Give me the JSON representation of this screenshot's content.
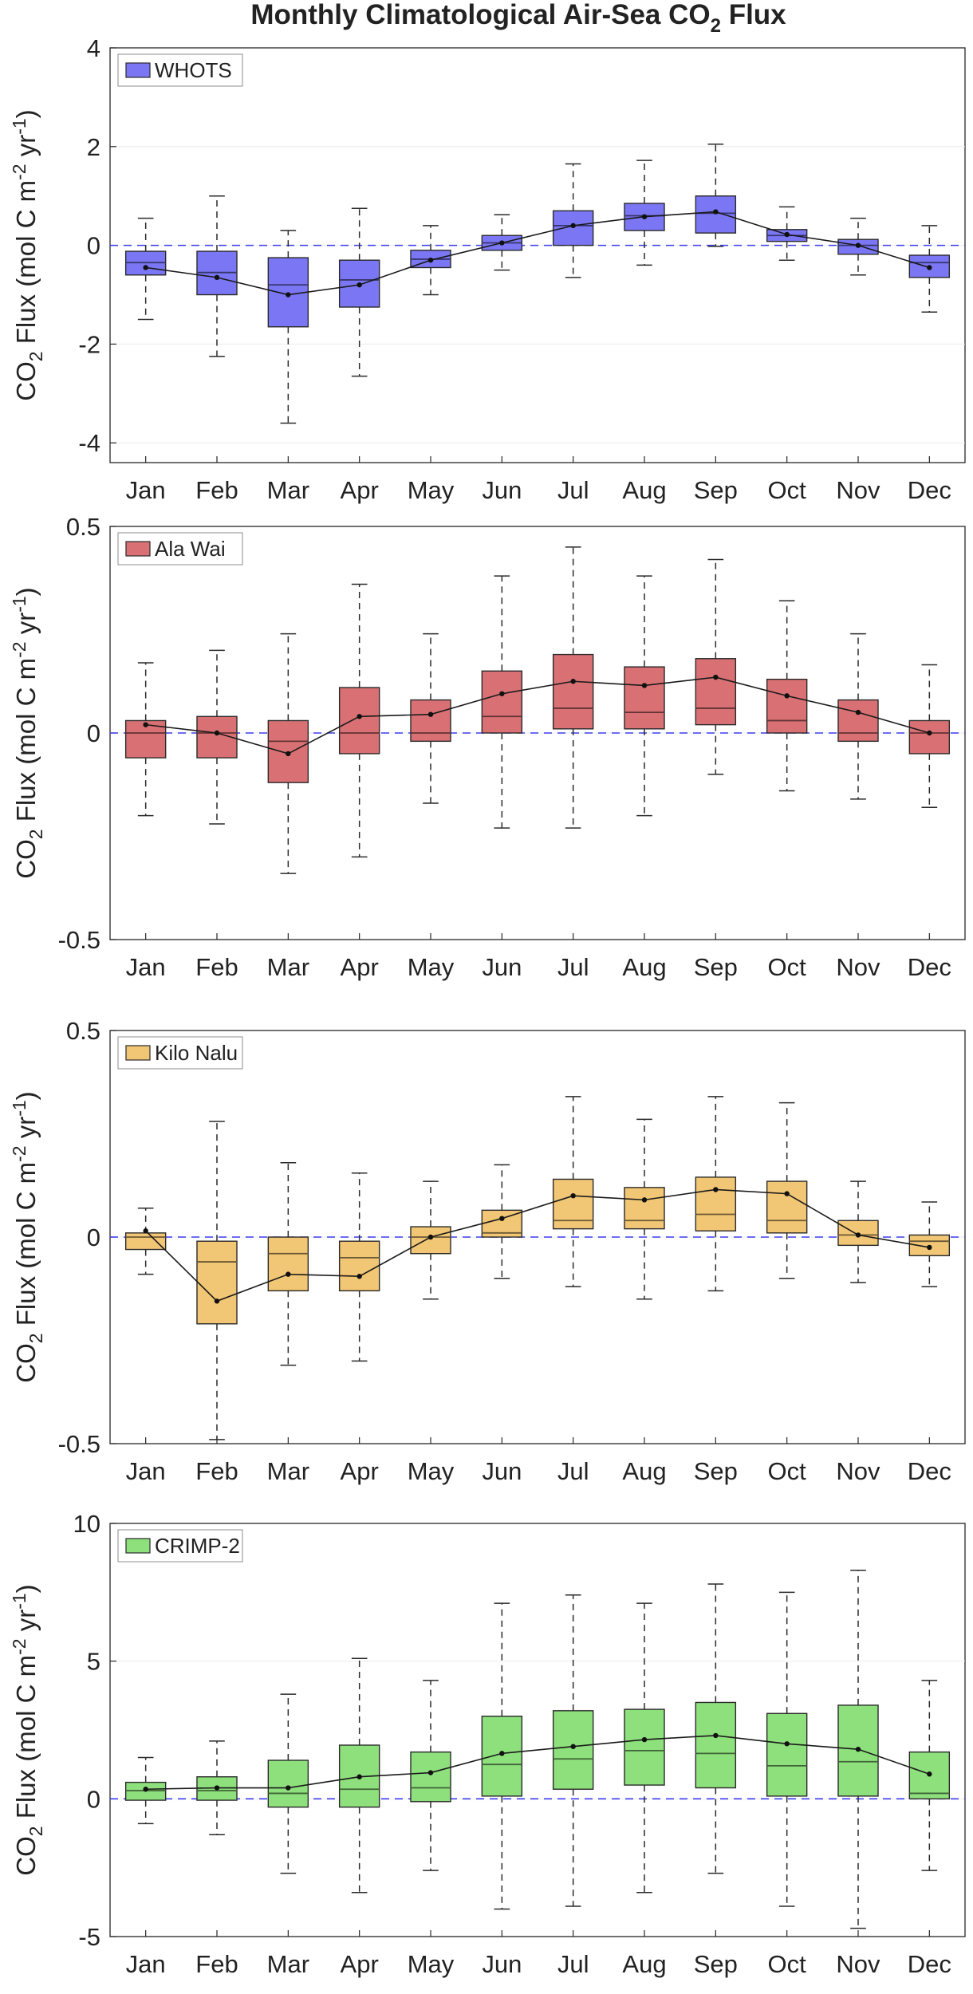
{
  "title": "Monthly Climatological Air-Sea CO",
  "title_sub": "2",
  "title_tail": " Flux",
  "chart_data": [
    {
      "type": "box",
      "name": "WHOTS",
      "color": "#7b77f4",
      "ylim": [
        -4.4,
        4
      ],
      "yticks": [
        -4,
        -2,
        0,
        2,
        4
      ],
      "ytick_labels": [
        "-4",
        "-2",
        "0",
        "2",
        "4"
      ],
      "ylabel": {
        "a": "CO",
        "b": "2",
        "c": " Flux (mol C m",
        "d": "-2",
        "e": " yr",
        "f": "-1",
        "g": ")"
      },
      "legend": "WHOTS",
      "categories": [
        "Jan",
        "Feb",
        "Mar",
        "Apr",
        "May",
        "Jun",
        "Jul",
        "Aug",
        "Sep",
        "Oct",
        "Nov",
        "Dec"
      ],
      "boxes": [
        {
          "whisker_low": -1.5,
          "q1": -0.6,
          "median": -0.35,
          "q3": -0.12,
          "whisker_high": 0.55,
          "mean": -0.45
        },
        {
          "whisker_low": -2.25,
          "q1": -1.0,
          "median": -0.55,
          "q3": -0.12,
          "whisker_high": 1.0,
          "mean": -0.65
        },
        {
          "whisker_low": -3.6,
          "q1": -1.65,
          "median": -0.8,
          "q3": -0.25,
          "whisker_high": 0.3,
          "mean": -1.0
        },
        {
          "whisker_low": -2.65,
          "q1": -1.25,
          "median": -0.7,
          "q3": -0.3,
          "whisker_high": 0.75,
          "mean": -0.8
        },
        {
          "whisker_low": -1.0,
          "q1": -0.45,
          "median": -0.28,
          "q3": -0.1,
          "whisker_high": 0.4,
          "mean": -0.3
        },
        {
          "whisker_low": -0.5,
          "q1": -0.1,
          "median": 0.05,
          "q3": 0.2,
          "whisker_high": 0.62,
          "mean": 0.05
        },
        {
          "whisker_low": -0.65,
          "q1": 0.0,
          "median": 0.4,
          "q3": 0.7,
          "whisker_high": 1.65,
          "mean": 0.4
        },
        {
          "whisker_low": -0.4,
          "q1": 0.3,
          "median": 0.6,
          "q3": 0.85,
          "whisker_high": 1.72,
          "mean": 0.58
        },
        {
          "whisker_low": -0.02,
          "q1": 0.25,
          "median": 0.65,
          "q3": 1.0,
          "whisker_high": 2.05,
          "mean": 0.68
        },
        {
          "whisker_low": -0.3,
          "q1": 0.08,
          "median": 0.2,
          "q3": 0.32,
          "whisker_high": 0.78,
          "mean": 0.22
        },
        {
          "whisker_low": -0.6,
          "q1": -0.18,
          "median": 0.0,
          "q3": 0.12,
          "whisker_high": 0.55,
          "mean": 0.0
        },
        {
          "whisker_low": -1.35,
          "q1": -0.65,
          "median": -0.35,
          "q3": -0.2,
          "whisker_high": 0.4,
          "mean": -0.45
        }
      ]
    },
    {
      "type": "box",
      "name": "Ala Wai",
      "color": "#d97174",
      "ylim": [
        -0.5,
        0.5
      ],
      "yticks": [
        -0.5,
        0,
        0.5
      ],
      "ytick_labels": [
        "-0.5",
        "0",
        "0.5"
      ],
      "ylabel": {
        "a": "CO",
        "b": "2",
        "c": " Flux (mol C m",
        "d": "-2",
        "e": " yr",
        "f": "-1",
        "g": ")"
      },
      "legend": "Ala Wai",
      "categories": [
        "Jan",
        "Feb",
        "Mar",
        "Apr",
        "May",
        "Jun",
        "Jul",
        "Aug",
        "Sep",
        "Oct",
        "Nov",
        "Dec"
      ],
      "boxes": [
        {
          "whisker_low": -0.2,
          "q1": -0.06,
          "median": 0.0,
          "q3": 0.03,
          "whisker_high": 0.17,
          "mean": 0.02
        },
        {
          "whisker_low": -0.22,
          "q1": -0.06,
          "median": 0.0,
          "q3": 0.04,
          "whisker_high": 0.2,
          "mean": 0.0
        },
        {
          "whisker_low": -0.34,
          "q1": -0.12,
          "median": -0.02,
          "q3": 0.03,
          "whisker_high": 0.24,
          "mean": -0.05
        },
        {
          "whisker_low": -0.3,
          "q1": -0.05,
          "median": 0.0,
          "q3": 0.11,
          "whisker_high": 0.36,
          "mean": 0.04
        },
        {
          "whisker_low": -0.17,
          "q1": -0.02,
          "median": 0.0,
          "q3": 0.08,
          "whisker_high": 0.24,
          "mean": 0.045
        },
        {
          "whisker_low": -0.23,
          "q1": 0.0,
          "median": 0.04,
          "q3": 0.15,
          "whisker_high": 0.38,
          "mean": 0.095
        },
        {
          "whisker_low": -0.23,
          "q1": 0.01,
          "median": 0.06,
          "q3": 0.19,
          "whisker_high": 0.45,
          "mean": 0.125
        },
        {
          "whisker_low": -0.2,
          "q1": 0.01,
          "median": 0.05,
          "q3": 0.16,
          "whisker_high": 0.38,
          "mean": 0.115
        },
        {
          "whisker_low": -0.1,
          "q1": 0.02,
          "median": 0.06,
          "q3": 0.18,
          "whisker_high": 0.42,
          "mean": 0.135
        },
        {
          "whisker_low": -0.14,
          "q1": 0.0,
          "median": 0.03,
          "q3": 0.13,
          "whisker_high": 0.32,
          "mean": 0.09
        },
        {
          "whisker_low": -0.16,
          "q1": -0.02,
          "median": 0.0,
          "q3": 0.08,
          "whisker_high": 0.24,
          "mean": 0.05
        },
        {
          "whisker_low": -0.18,
          "q1": -0.05,
          "median": 0.0,
          "q3": 0.03,
          "whisker_high": 0.165,
          "mean": 0.0
        }
      ]
    },
    {
      "type": "box",
      "name": "Kilo Nalu",
      "color": "#f1c675",
      "ylim": [
        -0.5,
        0.5
      ],
      "yticks": [
        -0.5,
        0,
        0.5
      ],
      "ytick_labels": [
        "-0.5",
        "0",
        "0.5"
      ],
      "ylabel": {
        "a": "CO",
        "b": "2",
        "c": " Flux (mol C m",
        "d": "-2",
        "e": " yr",
        "f": "-1",
        "g": ")"
      },
      "legend": "Kilo Nalu",
      "categories": [
        "Jan",
        "Feb",
        "Mar",
        "Apr",
        "May",
        "Jun",
        "Jul",
        "Aug",
        "Sep",
        "Oct",
        "Nov",
        "Dec"
      ],
      "boxes": [
        {
          "whisker_low": -0.09,
          "q1": -0.03,
          "median": 0.0,
          "q3": 0.01,
          "whisker_high": 0.07,
          "mean": 0.015
        },
        {
          "whisker_low": -0.49,
          "q1": -0.21,
          "median": -0.06,
          "q3": -0.01,
          "whisker_high": 0.28,
          "mean": -0.155
        },
        {
          "whisker_low": -0.31,
          "q1": -0.13,
          "median": -0.04,
          "q3": 0.0,
          "whisker_high": 0.18,
          "mean": -0.09
        },
        {
          "whisker_low": -0.3,
          "q1": -0.13,
          "median": -0.05,
          "q3": -0.01,
          "whisker_high": 0.155,
          "mean": -0.095
        },
        {
          "whisker_low": -0.15,
          "q1": -0.04,
          "median": 0.0,
          "q3": 0.025,
          "whisker_high": 0.135,
          "mean": 0.0
        },
        {
          "whisker_low": -0.1,
          "q1": 0.0,
          "median": 0.01,
          "q3": 0.065,
          "whisker_high": 0.175,
          "mean": 0.045
        },
        {
          "whisker_low": -0.12,
          "q1": 0.02,
          "median": 0.04,
          "q3": 0.14,
          "whisker_high": 0.34,
          "mean": 0.1
        },
        {
          "whisker_low": -0.15,
          "q1": 0.02,
          "median": 0.04,
          "q3": 0.12,
          "whisker_high": 0.285,
          "mean": 0.09
        },
        {
          "whisker_low": -0.13,
          "q1": 0.015,
          "median": 0.055,
          "q3": 0.145,
          "whisker_high": 0.34,
          "mean": 0.115
        },
        {
          "whisker_low": -0.1,
          "q1": 0.01,
          "median": 0.04,
          "q3": 0.135,
          "whisker_high": 0.325,
          "mean": 0.105
        },
        {
          "whisker_low": -0.11,
          "q1": -0.02,
          "median": 0.005,
          "q3": 0.04,
          "whisker_high": 0.135,
          "mean": 0.005
        },
        {
          "whisker_low": -0.12,
          "q1": -0.045,
          "median": -0.01,
          "q3": 0.005,
          "whisker_high": 0.085,
          "mean": -0.025
        }
      ]
    },
    {
      "type": "box",
      "name": "CRIMP-2",
      "color": "#8ee07d",
      "ylim": [
        -5,
        10
      ],
      "yticks": [
        -5,
        0,
        5,
        10
      ],
      "ytick_labels": [
        "-5",
        "0",
        "5",
        "10"
      ],
      "ylabel": {
        "a": "CO",
        "b": "2",
        "c": " Flux (mol C m",
        "d": "-2",
        "e": " yr",
        "f": "-1",
        "g": ")"
      },
      "legend": "CRIMP-2",
      "categories": [
        "Jan",
        "Feb",
        "Mar",
        "Apr",
        "May",
        "Jun",
        "Jul",
        "Aug",
        "Sep",
        "Oct",
        "Nov",
        "Dec"
      ],
      "boxes": [
        {
          "whisker_low": -0.9,
          "q1": -0.05,
          "median": 0.3,
          "q3": 0.6,
          "whisker_high": 1.5,
          "mean": 0.35
        },
        {
          "whisker_low": -1.3,
          "q1": -0.05,
          "median": 0.3,
          "q3": 0.8,
          "whisker_high": 2.1,
          "mean": 0.4
        },
        {
          "whisker_low": -2.7,
          "q1": -0.3,
          "median": 0.2,
          "q3": 1.4,
          "whisker_high": 3.8,
          "mean": 0.4
        },
        {
          "whisker_low": -3.4,
          "q1": -0.3,
          "median": 0.35,
          "q3": 1.95,
          "whisker_high": 5.1,
          "mean": 0.8
        },
        {
          "whisker_low": -2.6,
          "q1": -0.1,
          "median": 0.4,
          "q3": 1.7,
          "whisker_high": 4.3,
          "mean": 0.95
        },
        {
          "whisker_low": -4.0,
          "q1": 0.1,
          "median": 1.25,
          "q3": 3.0,
          "whisker_high": 7.1,
          "mean": 1.65
        },
        {
          "whisker_low": -3.9,
          "q1": 0.35,
          "median": 1.45,
          "q3": 3.2,
          "whisker_high": 7.4,
          "mean": 1.9
        },
        {
          "whisker_low": -3.4,
          "q1": 0.5,
          "median": 1.75,
          "q3": 3.25,
          "whisker_high": 7.1,
          "mean": 2.15
        },
        {
          "whisker_low": -2.7,
          "q1": 0.4,
          "median": 1.65,
          "q3": 3.5,
          "whisker_high": 7.8,
          "mean": 2.3
        },
        {
          "whisker_low": -3.9,
          "q1": 0.1,
          "median": 1.2,
          "q3": 3.1,
          "whisker_high": 7.5,
          "mean": 2.0
        },
        {
          "whisker_low": -4.7,
          "q1": 0.1,
          "median": 1.35,
          "q3": 3.4,
          "whisker_high": 8.3,
          "mean": 1.8
        },
        {
          "whisker_low": -2.6,
          "q1": 0.0,
          "median": 0.2,
          "q3": 1.7,
          "whisker_high": 4.3,
          "mean": 0.9
        }
      ]
    }
  ]
}
